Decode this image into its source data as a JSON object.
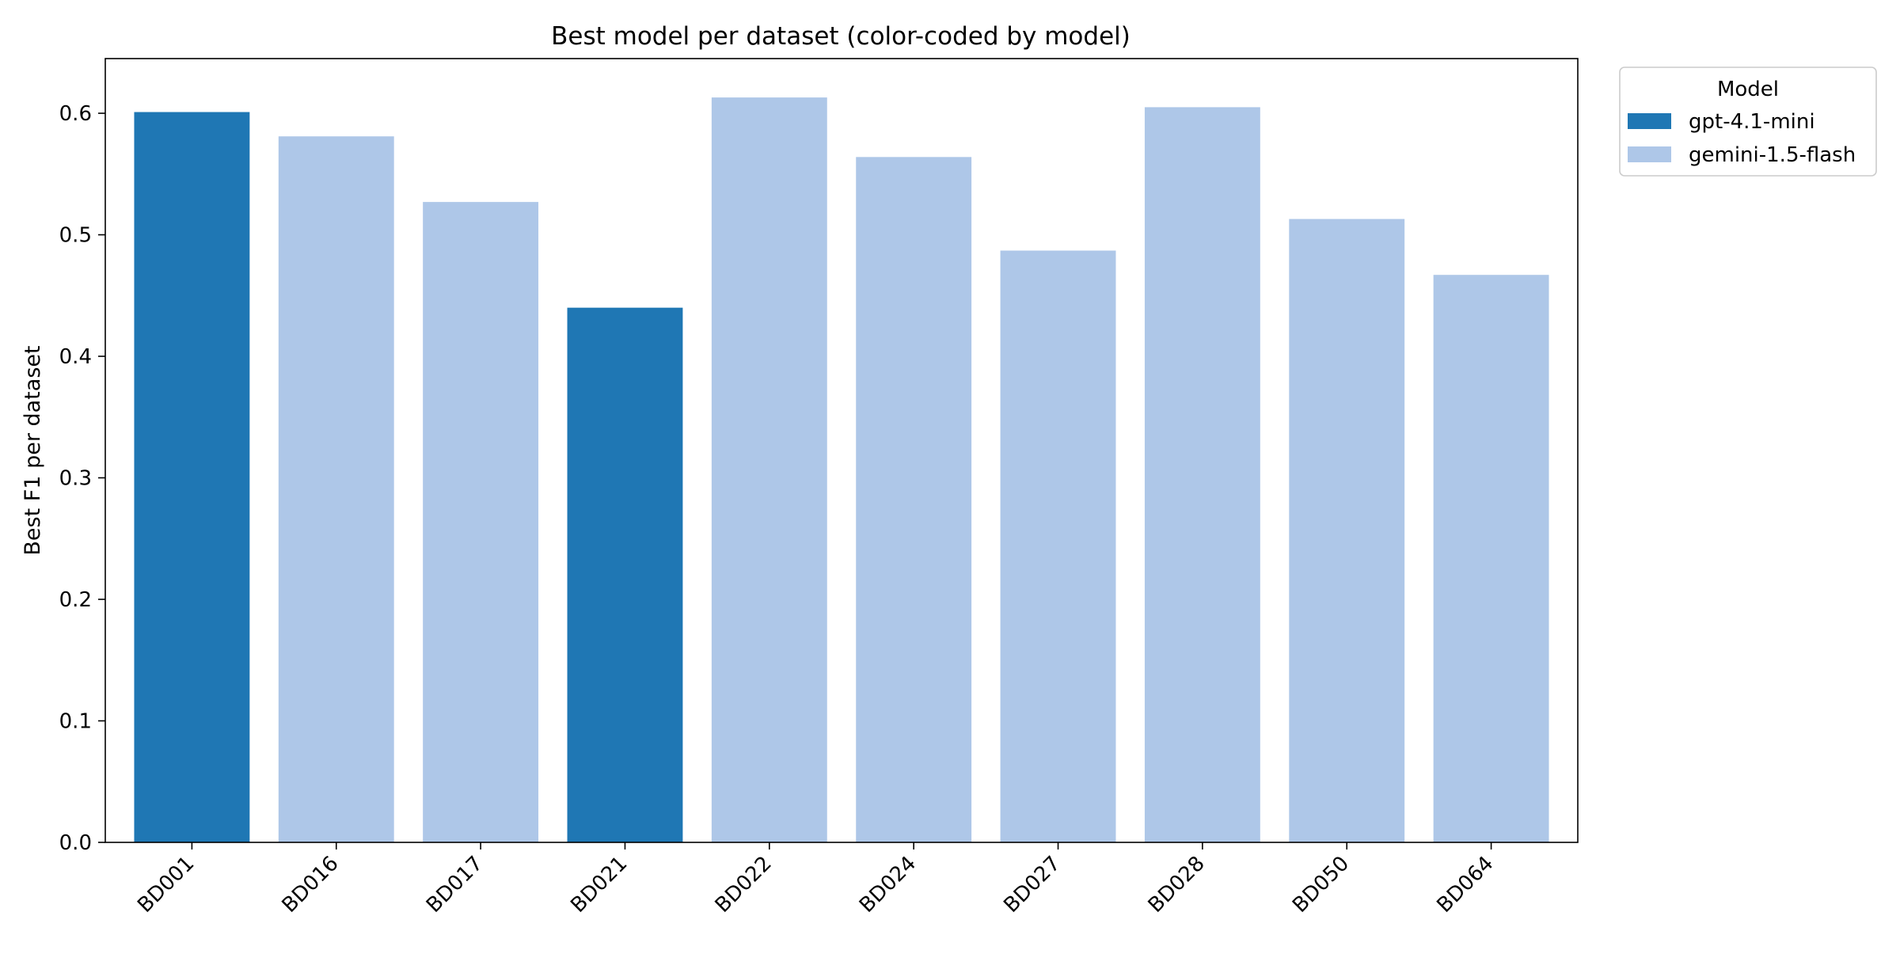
{
  "chart_data": {
    "type": "bar",
    "title": "Best model per dataset (color-coded by model)",
    "xlabel": "",
    "ylabel": "Best F1 per dataset",
    "ylim": [
      0,
      0.645
    ],
    "yticks": [
      0.0,
      0.1,
      0.2,
      0.3,
      0.4,
      0.5,
      0.6
    ],
    "ytick_labels": [
      "0.0",
      "0.1",
      "0.2",
      "0.3",
      "0.4",
      "0.5",
      "0.6"
    ],
    "grid": false,
    "categories": [
      "BD001",
      "BD016",
      "BD017",
      "BD021",
      "BD022",
      "BD024",
      "BD027",
      "BD028",
      "BD050",
      "BD064"
    ],
    "values": [
      0.601,
      0.581,
      0.527,
      0.44,
      0.613,
      0.564,
      0.487,
      0.605,
      0.513,
      0.467
    ],
    "models": [
      "gpt-4.1-mini",
      "gemini-1.5-flash",
      "gemini-1.5-flash",
      "gpt-4.1-mini",
      "gemini-1.5-flash",
      "gemini-1.5-flash",
      "gemini-1.5-flash",
      "gemini-1.5-flash",
      "gemini-1.5-flash",
      "gemini-1.5-flash"
    ],
    "legend": {
      "title": "Model",
      "placement": "outside-top-right",
      "entries": [
        {
          "label": "gpt-4.1-mini",
          "color": "#1f77b4"
        },
        {
          "label": "gemini-1.5-flash",
          "color": "#aec7e8"
        }
      ]
    }
  }
}
